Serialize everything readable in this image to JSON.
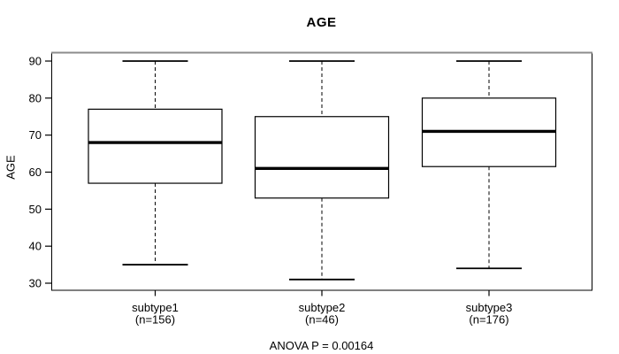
{
  "chart_data": {
    "type": "boxplot",
    "title": "AGE",
    "xlabel": "",
    "ylabel": "AGE",
    "ylim": [
      28,
      92
    ],
    "yticks": [
      30,
      40,
      50,
      60,
      70,
      80,
      90
    ],
    "grid": false,
    "legend": null,
    "annotation": "ANOVA P = 0.00164",
    "groups": [
      {
        "label": "subtype1",
        "sublabel": "(n=156)",
        "n": 156,
        "whisker_low": 35,
        "q1": 57,
        "median": 68,
        "q3": 77,
        "whisker_high": 90
      },
      {
        "label": "subtype2",
        "sublabel": "(n=46)",
        "n": 46,
        "whisker_low": 31,
        "q1": 53,
        "median": 61,
        "q3": 75,
        "whisker_high": 90
      },
      {
        "label": "subtype3",
        "sublabel": "(n=176)",
        "n": 176,
        "whisker_low": 34,
        "q1": 61.5,
        "median": 71,
        "q3": 80,
        "whisker_high": 90
      }
    ],
    "colors": {
      "line": "#000000",
      "box_fill": "#ffffff",
      "background": "#ffffff",
      "border_top_shadow": "#8c8c8c"
    }
  }
}
